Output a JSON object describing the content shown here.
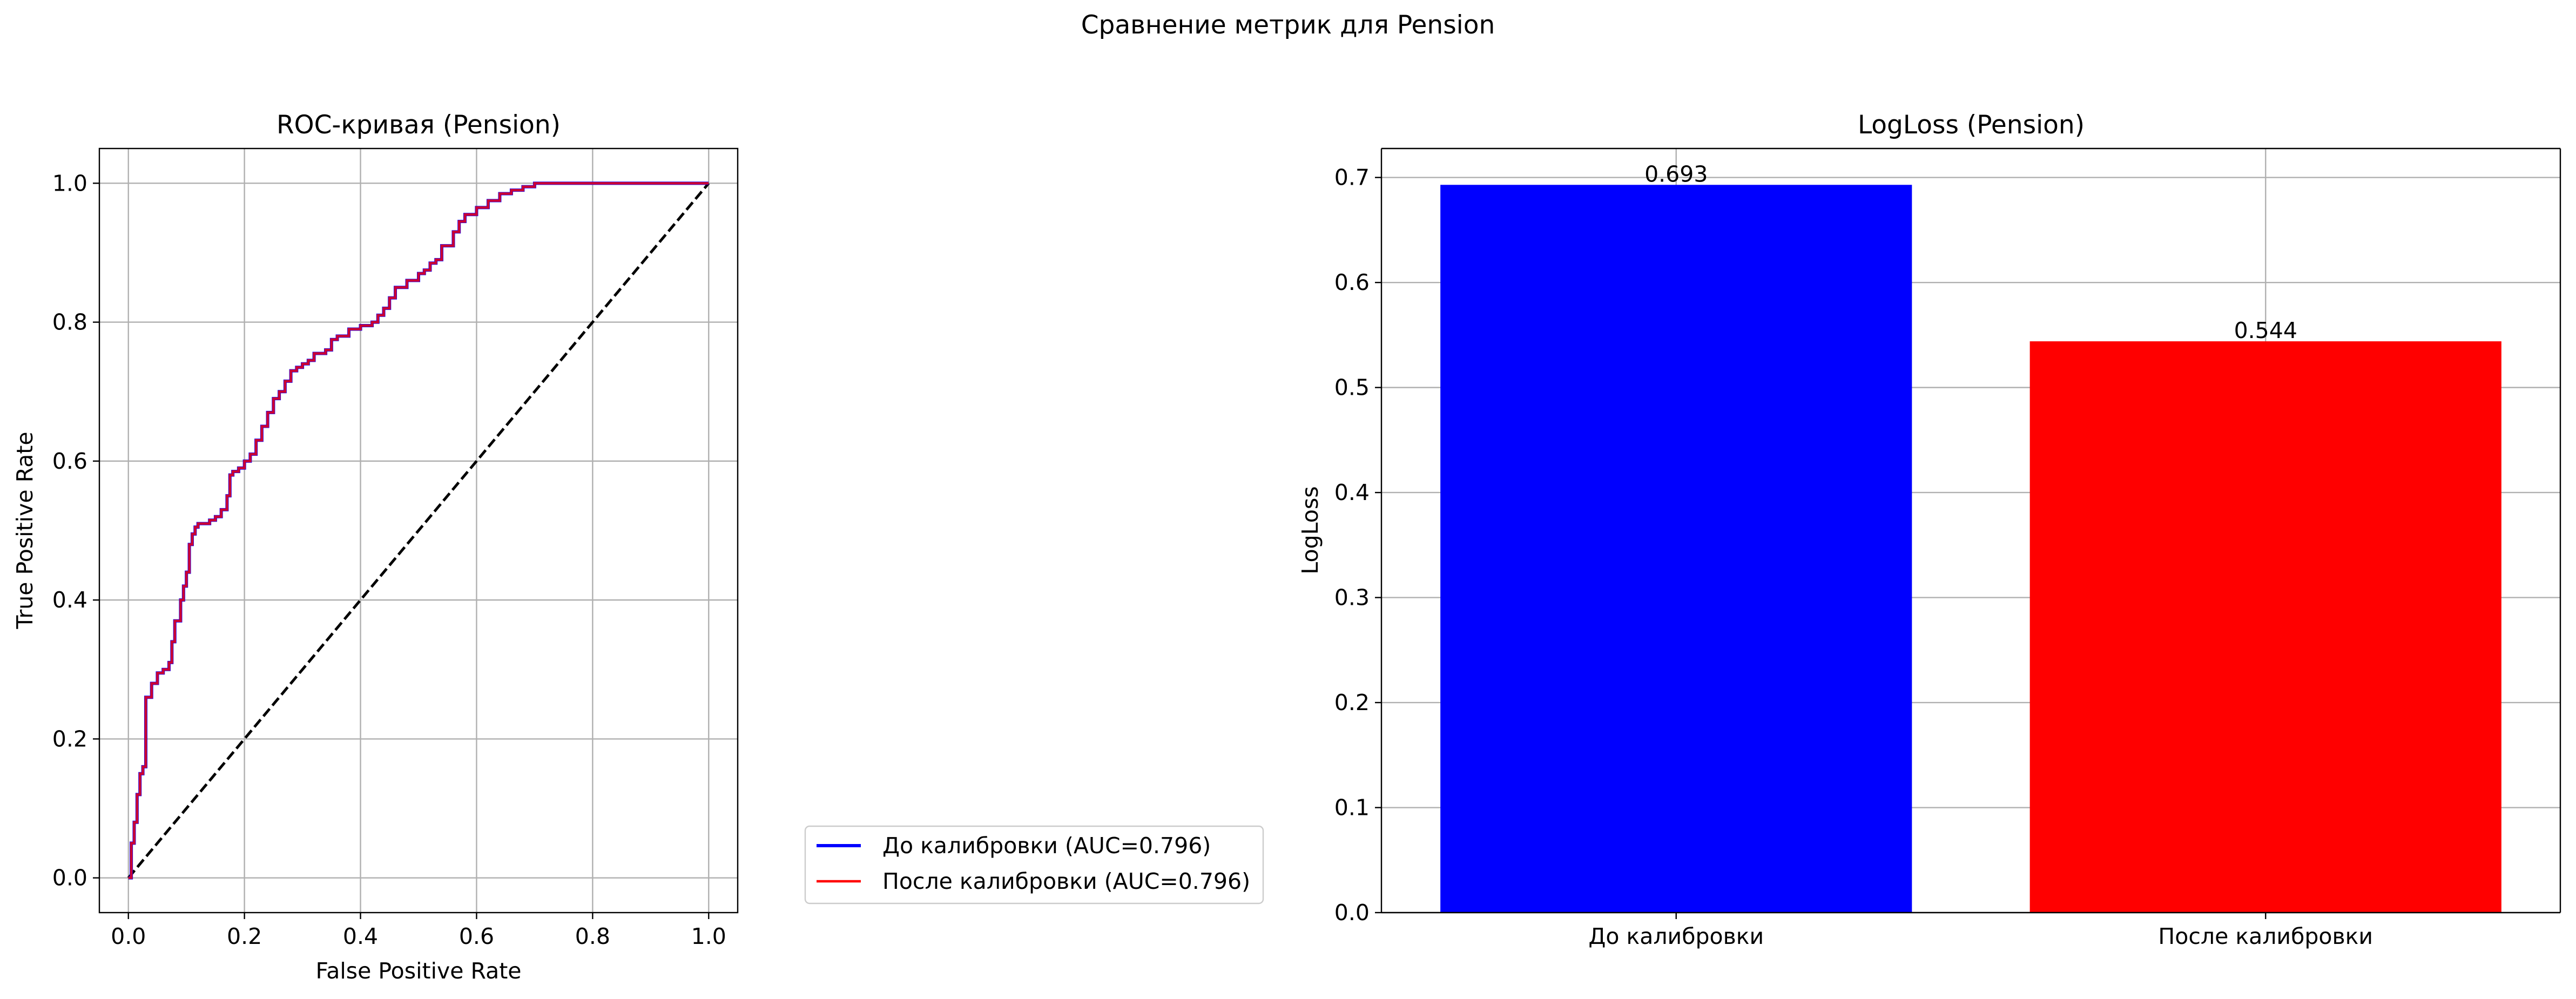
{
  "figure": {
    "suptitle": "Сравнение метрик для Pension"
  },
  "chart_data": [
    {
      "type": "line",
      "title": "ROC-кривая (Pension)",
      "xlabel": "False Positive Rate",
      "ylabel": "True Positive Rate",
      "xlim": [
        -0.05,
        1.05
      ],
      "ylim": [
        -0.05,
        1.05
      ],
      "xticks": [
        0.0,
        0.2,
        0.4,
        0.6,
        0.8,
        1.0
      ],
      "yticks": [
        0.0,
        0.2,
        0.4,
        0.6,
        0.8,
        1.0
      ],
      "grid": true,
      "legend_position": "lower right",
      "series": [
        {
          "name": "До калибровки (AUC=0.796)",
          "color": "#0000ff",
          "x": [
            0.0,
            0.005,
            0.01,
            0.015,
            0.02,
            0.025,
            0.03,
            0.03,
            0.04,
            0.05,
            0.06,
            0.07,
            0.075,
            0.08,
            0.09,
            0.095,
            0.1,
            0.105,
            0.11,
            0.115,
            0.12,
            0.13,
            0.14,
            0.15,
            0.16,
            0.17,
            0.175,
            0.18,
            0.19,
            0.2,
            0.21,
            0.22,
            0.23,
            0.24,
            0.25,
            0.26,
            0.27,
            0.28,
            0.29,
            0.3,
            0.31,
            0.32,
            0.34,
            0.35,
            0.36,
            0.38,
            0.4,
            0.42,
            0.43,
            0.44,
            0.45,
            0.46,
            0.48,
            0.5,
            0.51,
            0.52,
            0.53,
            0.54,
            0.56,
            0.57,
            0.58,
            0.6,
            0.62,
            0.64,
            0.66,
            0.68,
            0.7,
            0.8,
            0.9,
            1.0
          ],
          "y": [
            0.0,
            0.05,
            0.08,
            0.12,
            0.15,
            0.16,
            0.26,
            0.26,
            0.28,
            0.295,
            0.3,
            0.31,
            0.34,
            0.37,
            0.4,
            0.42,
            0.44,
            0.48,
            0.495,
            0.505,
            0.51,
            0.51,
            0.515,
            0.52,
            0.53,
            0.55,
            0.58,
            0.585,
            0.59,
            0.6,
            0.61,
            0.63,
            0.65,
            0.67,
            0.69,
            0.7,
            0.715,
            0.73,
            0.735,
            0.74,
            0.745,
            0.755,
            0.76,
            0.775,
            0.78,
            0.79,
            0.795,
            0.8,
            0.81,
            0.82,
            0.835,
            0.85,
            0.86,
            0.87,
            0.875,
            0.885,
            0.89,
            0.91,
            0.93,
            0.945,
            0.955,
            0.965,
            0.975,
            0.985,
            0.99,
            0.995,
            1.0,
            1.0,
            1.0,
            1.0
          ]
        },
        {
          "name": "После калибровки (AUC=0.796)",
          "color": "#ff0000",
          "x": [
            0.0,
            0.005,
            0.01,
            0.015,
            0.02,
            0.025,
            0.03,
            0.03,
            0.04,
            0.05,
            0.06,
            0.07,
            0.075,
            0.08,
            0.09,
            0.095,
            0.1,
            0.105,
            0.11,
            0.115,
            0.12,
            0.13,
            0.14,
            0.15,
            0.16,
            0.17,
            0.175,
            0.18,
            0.19,
            0.2,
            0.21,
            0.22,
            0.23,
            0.24,
            0.25,
            0.26,
            0.27,
            0.28,
            0.29,
            0.3,
            0.31,
            0.32,
            0.34,
            0.35,
            0.36,
            0.38,
            0.4,
            0.42,
            0.43,
            0.44,
            0.45,
            0.46,
            0.48,
            0.5,
            0.51,
            0.52,
            0.53,
            0.54,
            0.56,
            0.57,
            0.58,
            0.6,
            0.62,
            0.64,
            0.66,
            0.68,
            0.7,
            0.8,
            0.9,
            1.0
          ],
          "y": [
            0.0,
            0.05,
            0.08,
            0.12,
            0.15,
            0.16,
            0.26,
            0.26,
            0.28,
            0.295,
            0.3,
            0.31,
            0.34,
            0.37,
            0.4,
            0.42,
            0.44,
            0.48,
            0.495,
            0.505,
            0.51,
            0.51,
            0.515,
            0.52,
            0.53,
            0.55,
            0.58,
            0.585,
            0.59,
            0.6,
            0.61,
            0.63,
            0.65,
            0.67,
            0.69,
            0.7,
            0.715,
            0.73,
            0.735,
            0.74,
            0.745,
            0.755,
            0.76,
            0.775,
            0.78,
            0.79,
            0.795,
            0.8,
            0.81,
            0.82,
            0.835,
            0.85,
            0.86,
            0.87,
            0.875,
            0.885,
            0.89,
            0.91,
            0.93,
            0.945,
            0.955,
            0.965,
            0.975,
            0.985,
            0.99,
            0.995,
            1.0,
            1.0,
            1.0,
            1.0
          ]
        }
      ],
      "reference_line": {
        "x": [
          0,
          1
        ],
        "y": [
          0,
          1
        ],
        "color": "#000000",
        "style": "dashed"
      }
    },
    {
      "type": "bar",
      "title": "LogLoss (Pension)",
      "xlabel": "",
      "ylabel": "LogLoss",
      "categories": [
        "До калибровки",
        "После калибровки"
      ],
      "values": [
        0.693,
        0.544
      ],
      "value_labels": [
        "0.693",
        "0.544"
      ],
      "colors": [
        "#0000ff",
        "#ff0000"
      ],
      "ylim": [
        0,
        0.7276
      ],
      "yticks": [
        0.0,
        0.1,
        0.2,
        0.3,
        0.4,
        0.5,
        0.6,
        0.7
      ],
      "grid": true
    }
  ]
}
